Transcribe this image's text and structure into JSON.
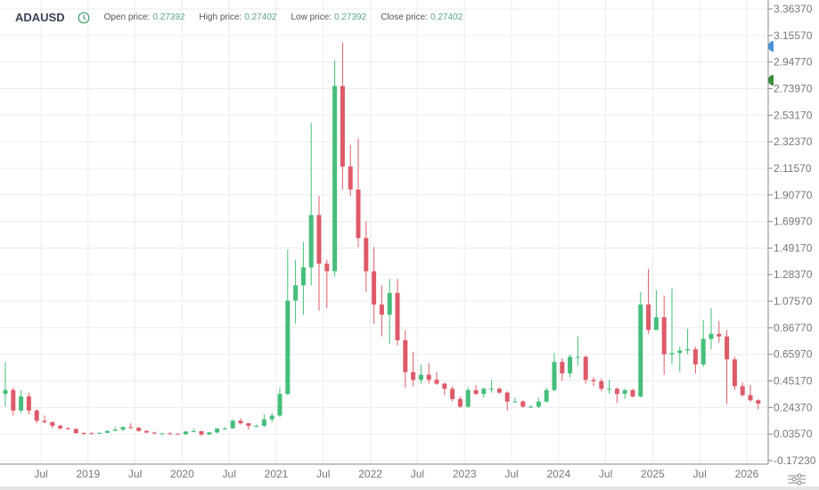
{
  "header": {
    "symbol": "ADAUSD",
    "icon": "clock-icon",
    "open_label": "Open price:",
    "open_value": "0.27392",
    "high_label": "High price:",
    "high_value": "0.27402",
    "low_label": "Low price:",
    "low_value": "0.27392",
    "close_label": "Close price:",
    "close_value": "0.27402"
  },
  "colors": {
    "up": "#45be7a",
    "down": "#de5a68",
    "grid": "#ececec",
    "axis": "#888888",
    "marker_blue": "#4a90d9",
    "marker_green": "#3a8a3a"
  },
  "chart_data": {
    "type": "candlestick",
    "title": "ADAUSD",
    "ylim": [
      -0.1723,
      3.3637
    ],
    "y_ticks": [
      "3.36370",
      "3.15570",
      "2.94770",
      "2.73970",
      "2.53170",
      "2.32370",
      "2.11570",
      "1.90770",
      "1.69970",
      "1.49170",
      "1.28370",
      "1.07570",
      "0.86770",
      "0.65970",
      "0.45170",
      "0.24370",
      "0.03570",
      "-0.17230"
    ],
    "x_ticks": [
      [
        "2018-07",
        "Jul"
      ],
      [
        "2019-01",
        "2019"
      ],
      [
        "2019-07",
        "Jul"
      ],
      [
        "2020-01",
        "2020"
      ],
      [
        "2020-07",
        "Jul"
      ],
      [
        "2021-01",
        "2021"
      ],
      [
        "2021-07",
        "Jul"
      ],
      [
        "2022-01",
        "2022"
      ],
      [
        "2022-07",
        "Jul"
      ],
      [
        "2023-01",
        "2023"
      ],
      [
        "2023-07",
        "Jul"
      ],
      [
        "2024-01",
        "2024"
      ],
      [
        "2024-07",
        "Jul"
      ],
      [
        "2025-01",
        "2025"
      ],
      [
        "2025-07",
        "Jul"
      ],
      [
        "2026-01",
        "2026"
      ]
    ],
    "grid": true,
    "columns": [
      "month",
      "open",
      "high",
      "low",
      "close"
    ],
    "candles": [
      [
        "2018-02",
        0.35,
        0.6,
        0.25,
        0.38
      ],
      [
        "2018-03",
        0.38,
        0.4,
        0.18,
        0.22
      ],
      [
        "2018-04",
        0.22,
        0.38,
        0.2,
        0.33
      ],
      [
        "2018-05",
        0.33,
        0.36,
        0.19,
        0.22
      ],
      [
        "2018-06",
        0.22,
        0.23,
        0.12,
        0.14
      ],
      [
        "2018-07",
        0.14,
        0.18,
        0.12,
        0.13
      ],
      [
        "2018-08",
        0.13,
        0.13,
        0.08,
        0.1
      ],
      [
        "2018-09",
        0.1,
        0.11,
        0.07,
        0.08
      ],
      [
        "2018-10",
        0.08,
        0.09,
        0.07,
        0.075
      ],
      [
        "2018-11",
        0.075,
        0.08,
        0.035,
        0.043
      ],
      [
        "2018-12",
        0.043,
        0.05,
        0.03,
        0.042
      ],
      [
        "2019-01",
        0.042,
        0.05,
        0.038,
        0.041
      ],
      [
        "2019-02",
        0.041,
        0.05,
        0.038,
        0.045
      ],
      [
        "2019-03",
        0.045,
        0.065,
        0.044,
        0.06
      ],
      [
        "2019-04",
        0.06,
        0.09,
        0.06,
        0.07
      ],
      [
        "2019-05",
        0.07,
        0.095,
        0.06,
        0.09
      ],
      [
        "2019-06",
        0.09,
        0.12,
        0.075,
        0.085
      ],
      [
        "2019-07",
        0.085,
        0.09,
        0.055,
        0.06
      ],
      [
        "2019-08",
        0.06,
        0.065,
        0.045,
        0.047
      ],
      [
        "2019-09",
        0.047,
        0.055,
        0.037,
        0.04
      ],
      [
        "2019-10",
        0.04,
        0.045,
        0.035,
        0.04
      ],
      [
        "2019-11",
        0.04,
        0.05,
        0.034,
        0.038
      ],
      [
        "2019-12",
        0.038,
        0.04,
        0.032,
        0.033
      ],
      [
        "2020-01",
        0.033,
        0.06,
        0.032,
        0.055
      ],
      [
        "2020-02",
        0.055,
        0.08,
        0.05,
        0.058
      ],
      [
        "2020-03",
        0.058,
        0.06,
        0.02,
        0.032
      ],
      [
        "2020-04",
        0.032,
        0.05,
        0.03,
        0.049
      ],
      [
        "2020-05",
        0.049,
        0.08,
        0.04,
        0.079
      ],
      [
        "2020-06",
        0.079,
        0.09,
        0.07,
        0.08
      ],
      [
        "2020-07",
        0.08,
        0.15,
        0.08,
        0.14
      ],
      [
        "2020-08",
        0.14,
        0.16,
        0.11,
        0.12
      ],
      [
        "2020-09",
        0.12,
        0.12,
        0.07,
        0.1
      ],
      [
        "2020-10",
        0.1,
        0.11,
        0.09,
        0.1
      ],
      [
        "2020-11",
        0.1,
        0.19,
        0.09,
        0.15
      ],
      [
        "2020-12",
        0.15,
        0.2,
        0.13,
        0.18
      ],
      [
        "2021-01",
        0.18,
        0.4,
        0.17,
        0.35
      ],
      [
        "2021-02",
        0.35,
        1.48,
        0.34,
        1.08
      ],
      [
        "2021-03",
        1.08,
        1.4,
        0.9,
        1.2
      ],
      [
        "2021-04",
        1.2,
        1.54,
        0.97,
        1.34
      ],
      [
        "2021-05",
        1.34,
        2.47,
        1.2,
        1.75
      ],
      [
        "2021-06",
        1.75,
        1.9,
        1.0,
        1.37
      ],
      [
        "2021-07",
        1.37,
        1.4,
        1.02,
        1.31
      ],
      [
        "2021-08",
        1.31,
        2.96,
        1.27,
        2.76
      ],
      [
        "2021-09",
        2.76,
        3.1,
        1.95,
        2.13
      ],
      [
        "2021-10",
        2.13,
        2.3,
        1.9,
        1.95
      ],
      [
        "2021-11",
        1.95,
        2.35,
        1.5,
        1.57
      ],
      [
        "2021-12",
        1.57,
        1.7,
        1.15,
        1.31
      ],
      [
        "2022-01",
        1.31,
        1.5,
        0.9,
        1.05
      ],
      [
        "2022-02",
        1.05,
        1.2,
        0.8,
        0.97
      ],
      [
        "2022-03",
        0.97,
        1.25,
        0.74,
        1.14
      ],
      [
        "2022-04",
        1.14,
        1.25,
        0.73,
        0.77
      ],
      [
        "2022-05",
        0.77,
        0.85,
        0.4,
        0.52
      ],
      [
        "2022-06",
        0.52,
        0.68,
        0.41,
        0.46
      ],
      [
        "2022-07",
        0.46,
        0.58,
        0.43,
        0.5
      ],
      [
        "2022-08",
        0.5,
        0.59,
        0.43,
        0.46
      ],
      [
        "2022-09",
        0.46,
        0.52,
        0.42,
        0.43
      ],
      [
        "2022-10",
        0.43,
        0.44,
        0.34,
        0.39
      ],
      [
        "2022-11",
        0.39,
        0.41,
        0.29,
        0.31
      ],
      [
        "2022-12",
        0.31,
        0.33,
        0.24,
        0.25
      ],
      [
        "2023-01",
        0.25,
        0.4,
        0.24,
        0.38
      ],
      [
        "2023-02",
        0.38,
        0.42,
        0.34,
        0.35
      ],
      [
        "2023-03",
        0.35,
        0.4,
        0.32,
        0.39
      ],
      [
        "2023-04",
        0.39,
        0.46,
        0.36,
        0.39
      ],
      [
        "2023-05",
        0.39,
        0.4,
        0.35,
        0.36
      ],
      [
        "2023-06",
        0.36,
        0.37,
        0.22,
        0.29
      ],
      [
        "2023-07",
        0.29,
        0.32,
        0.28,
        0.29
      ],
      [
        "2023-08",
        0.29,
        0.3,
        0.24,
        0.25
      ],
      [
        "2023-09",
        0.25,
        0.26,
        0.24,
        0.25
      ],
      [
        "2023-10",
        0.25,
        0.32,
        0.24,
        0.29
      ],
      [
        "2023-11",
        0.29,
        0.4,
        0.28,
        0.38
      ],
      [
        "2023-12",
        0.38,
        0.67,
        0.37,
        0.6
      ],
      [
        "2024-01",
        0.6,
        0.63,
        0.45,
        0.51
      ],
      [
        "2024-02",
        0.51,
        0.66,
        0.48,
        0.64
      ],
      [
        "2024-03",
        0.64,
        0.8,
        0.57,
        0.64
      ],
      [
        "2024-04",
        0.64,
        0.65,
        0.43,
        0.46
      ],
      [
        "2024-05",
        0.46,
        0.48,
        0.41,
        0.45
      ],
      [
        "2024-06",
        0.45,
        0.47,
        0.37,
        0.39
      ],
      [
        "2024-07",
        0.39,
        0.46,
        0.35,
        0.39
      ],
      [
        "2024-08",
        0.39,
        0.4,
        0.28,
        0.35
      ],
      [
        "2024-09",
        0.35,
        0.39,
        0.31,
        0.38
      ],
      [
        "2024-10",
        0.38,
        0.39,
        0.32,
        0.33
      ],
      [
        "2024-11",
        0.33,
        1.15,
        0.32,
        1.05
      ],
      [
        "2024-12",
        1.05,
        1.33,
        0.82,
        0.85
      ],
      [
        "2025-01",
        0.85,
        1.16,
        0.85,
        0.95
      ],
      [
        "2025-02",
        0.95,
        1.12,
        0.5,
        0.66
      ],
      [
        "2025-03",
        0.66,
        1.18,
        0.58,
        0.67
      ],
      [
        "2025-04",
        0.67,
        0.72,
        0.52,
        0.69
      ],
      [
        "2025-05",
        0.69,
        0.86,
        0.66,
        0.7
      ],
      [
        "2025-06",
        0.7,
        0.72,
        0.51,
        0.58
      ],
      [
        "2025-07",
        0.58,
        0.93,
        0.56,
        0.78
      ],
      [
        "2025-08",
        0.78,
        1.02,
        0.7,
        0.82
      ],
      [
        "2025-09",
        0.82,
        0.92,
        0.75,
        0.8
      ],
      [
        "2025-10",
        0.8,
        0.85,
        0.27,
        0.62
      ],
      [
        "2025-11",
        0.62,
        0.64,
        0.38,
        0.41
      ],
      [
        "2025-12",
        0.41,
        0.44,
        0.33,
        0.34
      ],
      [
        "2026-01",
        0.34,
        0.42,
        0.29,
        0.3
      ],
      [
        "2026-02",
        0.3,
        0.31,
        0.23,
        0.27402
      ]
    ]
  }
}
